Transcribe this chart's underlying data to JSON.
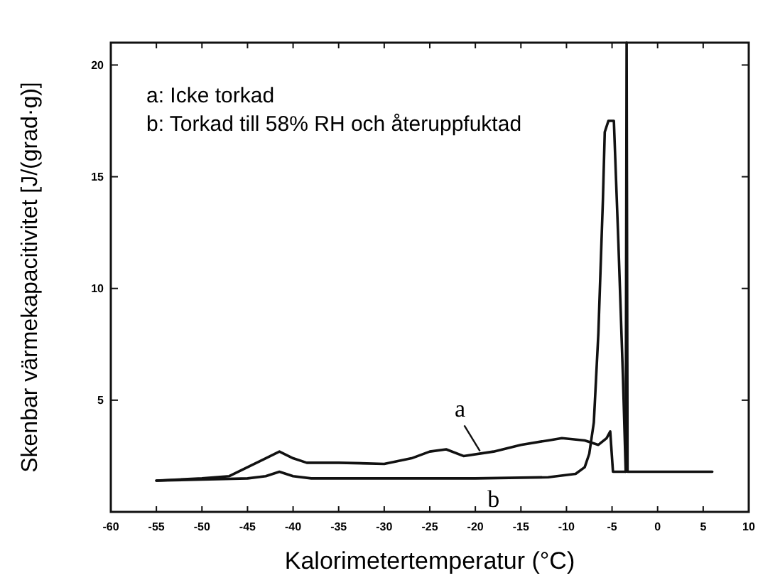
{
  "chart_data": {
    "type": "line",
    "xlabel": "Kalorimetertemperatur (°C)",
    "ylabel": "Skenbar värmekapacitivitet [J/(grad·g)]",
    "xlim": [
      -60,
      10
    ],
    "xticks": [
      -60,
      -55,
      -50,
      -45,
      -40,
      -35,
      -30,
      -25,
      -20,
      -15,
      -10,
      -5,
      0,
      5,
      10
    ],
    "ylim": [
      0,
      21
    ],
    "yticks": [
      5,
      10,
      15,
      20
    ],
    "grid": false,
    "marker": "none",
    "line_style": "solid",
    "annotations": [
      "a: Icke torkad",
      "b: Torkad till 58% RH och återuppfuktad",
      {
        "text": "a",
        "x": -19.5,
        "y": 2.6
      },
      {
        "text": "b",
        "x": -18,
        "y": 1.5
      }
    ],
    "series": [
      {
        "color": "#111111",
        "x": [
          -55,
          -50,
          -47,
          -45,
          -43,
          -41.5,
          -40,
          -38.5,
          -35,
          -30,
          -27,
          -25,
          -23.2,
          -21.3,
          -18,
          -15,
          -12,
          -10.5,
          -8,
          -6.5,
          -5.6,
          -5.2,
          -4.9,
          -3.5,
          -3.4,
          -3.3,
          6
        ],
        "values": [
          1.4,
          1.5,
          1.6,
          2.0,
          2.4,
          2.7,
          2.4,
          2.2,
          2.2,
          2.15,
          2.4,
          2.7,
          2.8,
          2.5,
          2.7,
          3.0,
          3.2,
          3.3,
          3.2,
          3.0,
          3.3,
          3.6,
          1.8,
          1.8,
          21,
          1.8,
          1.8
        ]
      },
      {
        "color": "#111111",
        "x": [
          -55,
          -50,
          -45,
          -43,
          -41.5,
          -40,
          -38,
          -30,
          -20,
          -12,
          -9,
          -8,
          -7.5,
          -7,
          -6.5,
          -6,
          -5.8,
          -5.4,
          -4.8,
          -4.3,
          -3.8,
          -3.5
        ],
        "values": [
          1.4,
          1.45,
          1.5,
          1.6,
          1.8,
          1.6,
          1.5,
          1.5,
          1.5,
          1.55,
          1.7,
          2.0,
          2.6,
          4.0,
          8.0,
          14.0,
          17.0,
          17.5,
          17.5,
          12.0,
          6.0,
          1.8
        ]
      }
    ]
  }
}
